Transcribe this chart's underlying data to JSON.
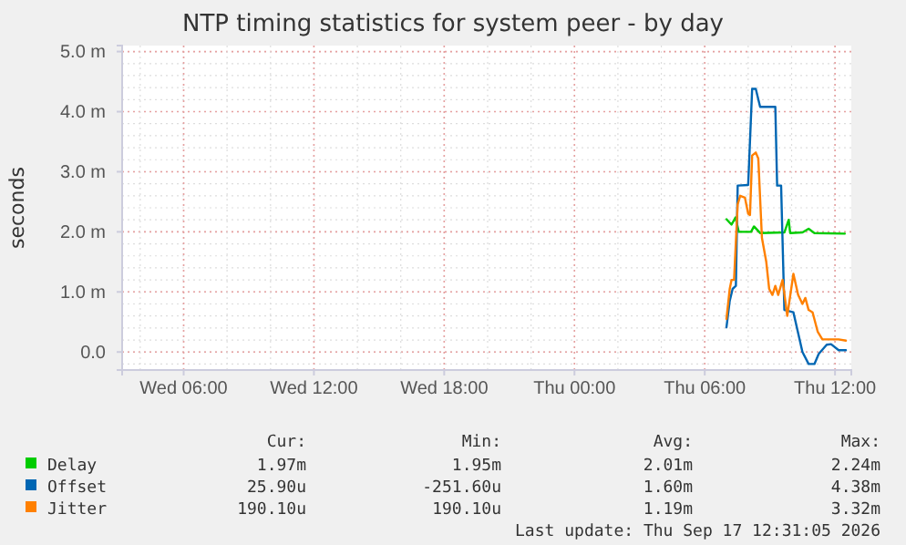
{
  "chart_data": {
    "type": "line",
    "title": "NTP timing statistics for system peer - by day",
    "ylabel": "seconds",
    "xlim": [
      "2026-09-16T03:10",
      "2026-09-17T12:45"
    ],
    "xticks": [
      {
        "value": "2026-09-16T06:00",
        "label": "Wed 06:00"
      },
      {
        "value": "2026-09-16T12:00",
        "label": "Wed 12:00"
      },
      {
        "value": "2026-09-16T18:00",
        "label": "Wed 18:00"
      },
      {
        "value": "2026-09-17T00:00",
        "label": "Thu 00:00"
      },
      {
        "value": "2026-09-17T06:00",
        "label": "Thu 06:00"
      },
      {
        "value": "2026-09-17T12:00",
        "label": "Thu 12:00"
      }
    ],
    "ylim": [
      -0.3,
      5.1
    ],
    "yticks": [
      {
        "value": 0,
        "label": "0.0"
      },
      {
        "value": 1,
        "label": "1.0 m"
      },
      {
        "value": 2,
        "label": "2.0 m"
      },
      {
        "value": 3,
        "label": "3.0 m"
      },
      {
        "value": 4,
        "label": "4.0 m"
      },
      {
        "value": 5,
        "label": "5.0 m"
      }
    ],
    "grid": true,
    "legend": "bottom",
    "marker": "none",
    "line_style": "solid",
    "series": [
      {
        "name": "Delay",
        "color": "#00cc00",
        "x": [
          "2026-09-17T07:00",
          "2026-09-17T07:14",
          "2026-09-17T07:25",
          "2026-09-17T07:34",
          "2026-09-17T08:08",
          "2026-09-17T08:16",
          "2026-09-17T08:33",
          "2026-09-17T09:40",
          "2026-09-17T09:52",
          "2026-09-17T09:56",
          "2026-09-17T10:30",
          "2026-09-17T10:47",
          "2026-09-17T11:03",
          "2026-09-17T12:27"
        ],
        "values": [
          2.21,
          2.12,
          2.24,
          2.0,
          2.0,
          2.09,
          1.98,
          1.99,
          2.2,
          1.98,
          1.99,
          2.05,
          1.98,
          1.97
        ]
      },
      {
        "name": "Offset",
        "color": "#0066b3",
        "x": [
          "2026-09-17T07:00",
          "2026-09-17T07:09",
          "2026-09-17T07:17",
          "2026-09-17T07:26",
          "2026-09-17T07:31",
          "2026-09-17T08:00",
          "2026-09-17T08:11",
          "2026-09-17T08:21",
          "2026-09-17T08:33",
          "2026-09-17T09:15",
          "2026-09-17T09:20",
          "2026-09-17T09:31",
          "2026-09-17T09:40",
          "2026-09-17T10:05",
          "2026-09-17T10:30",
          "2026-09-17T10:47",
          "2026-09-17T11:03",
          "2026-09-17T11:15",
          "2026-09-17T11:37",
          "2026-09-17T11:49",
          "2026-09-17T12:10",
          "2026-09-17T12:30"
        ],
        "values": [
          0.41,
          0.85,
          1.05,
          1.1,
          2.77,
          2.78,
          4.38,
          4.38,
          4.08,
          4.08,
          2.77,
          2.77,
          0.7,
          0.66,
          0.0,
          -0.2,
          -0.2,
          -0.03,
          0.12,
          0.13,
          0.03,
          0.03
        ]
      },
      {
        "name": "Jitter",
        "color": "#ff8000",
        "x": [
          "2026-09-17T07:00",
          "2026-09-17T07:09",
          "2026-09-17T07:14",
          "2026-09-17T07:21",
          "2026-09-17T07:31",
          "2026-09-17T07:38",
          "2026-09-17T07:51",
          "2026-09-17T08:00",
          "2026-09-17T08:05",
          "2026-09-17T08:11",
          "2026-09-17T08:21",
          "2026-09-17T08:28",
          "2026-09-17T08:38",
          "2026-09-17T08:50",
          "2026-09-17T08:58",
          "2026-09-17T09:07",
          "2026-09-17T09:15",
          "2026-09-17T09:23",
          "2026-09-17T09:35",
          "2026-09-17T09:48",
          "2026-09-17T10:05",
          "2026-09-17T10:18",
          "2026-09-17T10:30",
          "2026-09-17T10:38",
          "2026-09-17T10:47",
          "2026-09-17T10:58",
          "2026-09-17T11:12",
          "2026-09-17T11:25",
          "2026-09-17T11:45",
          "2026-09-17T12:10",
          "2026-09-17T12:30"
        ],
        "values": [
          0.55,
          1.05,
          1.2,
          1.2,
          2.46,
          2.6,
          2.57,
          2.3,
          2.28,
          3.27,
          3.32,
          3.22,
          1.9,
          1.5,
          1.05,
          0.95,
          1.1,
          0.95,
          1.2,
          0.6,
          1.3,
          0.95,
          0.8,
          0.9,
          0.7,
          0.66,
          0.34,
          0.21,
          0.21,
          0.21,
          0.19
        ]
      }
    ],
    "annotations": [
      "Cur:",
      "Min:",
      "Avg:",
      "Max:",
      "1.97m",
      "1.95m",
      "2.01m",
      "2.24m",
      "25.90u",
      "-251.60u",
      "1.60m",
      "4.38m",
      "190.10u",
      "190.10u",
      "1.19m",
      "3.32m",
      "Last update: Thu Sep 17 12:31:05 2026"
    ]
  }
}
